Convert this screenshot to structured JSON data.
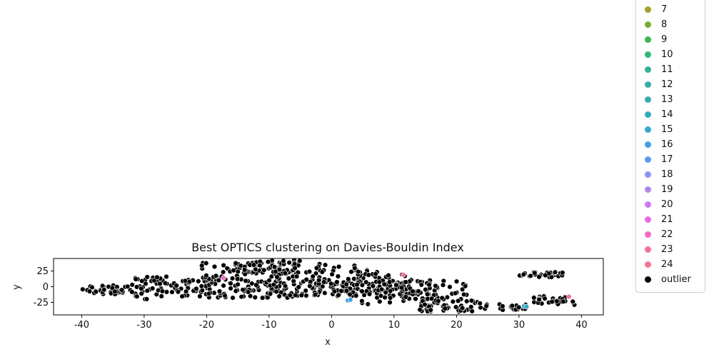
{
  "chart_data": {
    "type": "scatter",
    "title": "Best OPTICS clustering on Davies-Bouldin Index",
    "xlabel": "x",
    "ylabel": "y",
    "xlim": [
      -44.5,
      43.5
    ],
    "ylim": [
      -45,
      45
    ],
    "xticks": [
      -40,
      -30,
      -20,
      -10,
      0,
      10,
      20,
      30,
      40
    ],
    "yticks": [
      -25,
      0,
      25
    ],
    "grid": false,
    "legend_position": "right",
    "legend": [
      {
        "label": "7",
        "color": "#a0a22a"
      },
      {
        "label": "8",
        "color": "#7dab2b"
      },
      {
        "label": "9",
        "color": "#3fb34e"
      },
      {
        "label": "10",
        "color": "#32b57a"
      },
      {
        "label": "11",
        "color": "#35b295"
      },
      {
        "label": "12",
        "color": "#36afa5"
      },
      {
        "label": "13",
        "color": "#37adb2"
      },
      {
        "label": "14",
        "color": "#38aabe"
      },
      {
        "label": "15",
        "color": "#3aa6cf"
      },
      {
        "label": "16",
        "color": "#3ea1e2"
      },
      {
        "label": "17",
        "color": "#5b9af0"
      },
      {
        "label": "18",
        "color": "#8d91f2"
      },
      {
        "label": "19",
        "color": "#b086f2"
      },
      {
        "label": "20",
        "color": "#d078f0"
      },
      {
        "label": "21",
        "color": "#e86be6"
      },
      {
        "label": "22",
        "color": "#f06bc6"
      },
      {
        "label": "23",
        "color": "#f36fa6"
      },
      {
        "label": "24",
        "color": "#f47590"
      },
      {
        "label": "outlier",
        "color": "#000000"
      }
    ],
    "clusters": [
      {
        "name": "outlier",
        "color": "#000000",
        "bands": [
          [
            -40,
            -32,
            -12,
            2,
            40
          ],
          [
            -32,
            -25,
            -20,
            16,
            50
          ],
          [
            -25,
            -18,
            -18,
            12,
            45
          ],
          [
            -21,
            -12,
            10,
            38,
            50
          ],
          [
            -18,
            -5,
            -18,
            10,
            70
          ],
          [
            -14,
            -5,
            20,
            42,
            55
          ],
          [
            -10,
            5,
            -15,
            38,
            90
          ],
          [
            -5,
            8,
            -15,
            15,
            60
          ],
          [
            4,
            12,
            -28,
            28,
            65
          ],
          [
            8,
            16,
            -22,
            12,
            40
          ],
          [
            11,
            22,
            -20,
            10,
            45
          ],
          [
            14,
            24,
            -40,
            -22,
            60
          ],
          [
            24,
            31,
            -37,
            -27,
            20
          ],
          [
            30,
            37,
            15,
            24,
            35
          ],
          [
            31,
            39,
            -29,
            -14,
            30
          ]
        ]
      },
      {
        "name": "16",
        "color": "#3ea1e2",
        "points": [
          [
            2.6,
            -22
          ],
          [
            3.0,
            -21
          ]
        ]
      },
      {
        "name": "14",
        "color": "#38aabe",
        "points": [
          [
            30.8,
            -31
          ],
          [
            31.2,
            -32
          ]
        ]
      },
      {
        "name": "22",
        "color": "#f06bc6",
        "points": [
          [
            -17.3,
            14
          ]
        ]
      },
      {
        "name": "24",
        "color": "#f47590",
        "points": [
          [
            11.5,
            19
          ],
          [
            38.0,
            -16
          ]
        ]
      }
    ]
  }
}
